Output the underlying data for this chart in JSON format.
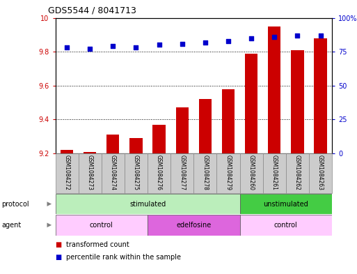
{
  "title": "GDS5544 / 8041713",
  "samples": [
    "GSM1084272",
    "GSM1084273",
    "GSM1084274",
    "GSM1084275",
    "GSM1084276",
    "GSM1084277",
    "GSM1084278",
    "GSM1084279",
    "GSM1084260",
    "GSM1084261",
    "GSM1084262",
    "GSM1084263"
  ],
  "bar_values": [
    9.22,
    9.21,
    9.31,
    9.29,
    9.37,
    9.47,
    9.52,
    9.58,
    9.79,
    9.95,
    9.81,
    9.88
  ],
  "dot_values": [
    78,
    77,
    79,
    78,
    80,
    81,
    82,
    83,
    85,
    86,
    87,
    87
  ],
  "bar_bottom": 9.2,
  "ylim_left": [
    9.2,
    10.0
  ],
  "ylim_right": [
    0,
    100
  ],
  "yticks_left": [
    9.2,
    9.4,
    9.6,
    9.8,
    10.0
  ],
  "ytick_labels_left": [
    "9.2",
    "9.4",
    "9.6",
    "9.8",
    "10"
  ],
  "yticks_right": [
    0,
    25,
    50,
    75,
    100
  ],
  "ytick_labels_right": [
    "0",
    "25",
    "50",
    "75",
    "100%"
  ],
  "bar_color": "#cc0000",
  "dot_color": "#0000cc",
  "protocol_labels": [
    {
      "text": "stimulated",
      "start": 0,
      "end": 7,
      "color": "#bbeebb"
    },
    {
      "text": "unstimulated",
      "start": 8,
      "end": 11,
      "color": "#44cc44"
    }
  ],
  "agent_labels": [
    {
      "text": "control",
      "start": 0,
      "end": 3,
      "color": "#ffccff"
    },
    {
      "text": "edelfosine",
      "start": 4,
      "end": 7,
      "color": "#dd66dd"
    },
    {
      "text": "control",
      "start": 8,
      "end": 11,
      "color": "#ffccff"
    }
  ],
  "legend_items": [
    {
      "label": "transformed count",
      "color": "#cc0000"
    },
    {
      "label": "percentile rank within the sample",
      "color": "#0000cc"
    }
  ],
  "background_color": "#ffffff"
}
